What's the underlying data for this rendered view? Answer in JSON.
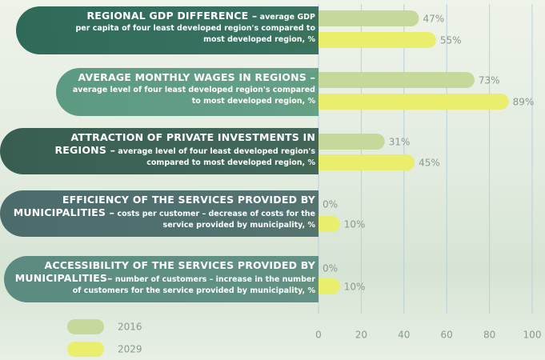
{
  "chart_data": {
    "type": "hbar",
    "categories": [
      "REGIONAL GDP DIFFERENCE –",
      "AVERAGE MONTHLY WAGES IN REGIONS –",
      "ATTRACTION OF PRIVATE INVESTMENTS IN REGIONS –",
      "EFFICIENCY OF THE SERVICES PROVIDED BY MUNICIPALITIES –",
      "ACCESSIBILITY OF THE SERVICES PROVIDED BY MUNICIPALITIES–"
    ],
    "descriptions": [
      "average GDP per capita of four least developed region's compared to most developed region, %",
      "average level of four least developed region's compared to most developed region, %",
      "average level of four least developed region's compared to most developed region, %",
      "costs per customer – decrease of costs for the service provided by municipality, %",
      "number of customers – increase in the number of customers for the service provided by municipality, %"
    ],
    "series": [
      {
        "name": "2016",
        "color": "#c6d99b",
        "values": [
          47,
          73,
          31,
          0,
          0
        ],
        "value_labels": [
          "47%",
          "73%",
          "31%",
          "0%",
          "0%"
        ]
      },
      {
        "name": "2029",
        "color": "#e9ee6c",
        "values": [
          55,
          89,
          45,
          10,
          10
        ],
        "value_labels": [
          "55%",
          "89%",
          "45%",
          "10%",
          "10%"
        ]
      }
    ],
    "xlim": [
      0,
      100
    ],
    "xticks": [
      0,
      20,
      40,
      60,
      80,
      100
    ],
    "grid": true
  }
}
